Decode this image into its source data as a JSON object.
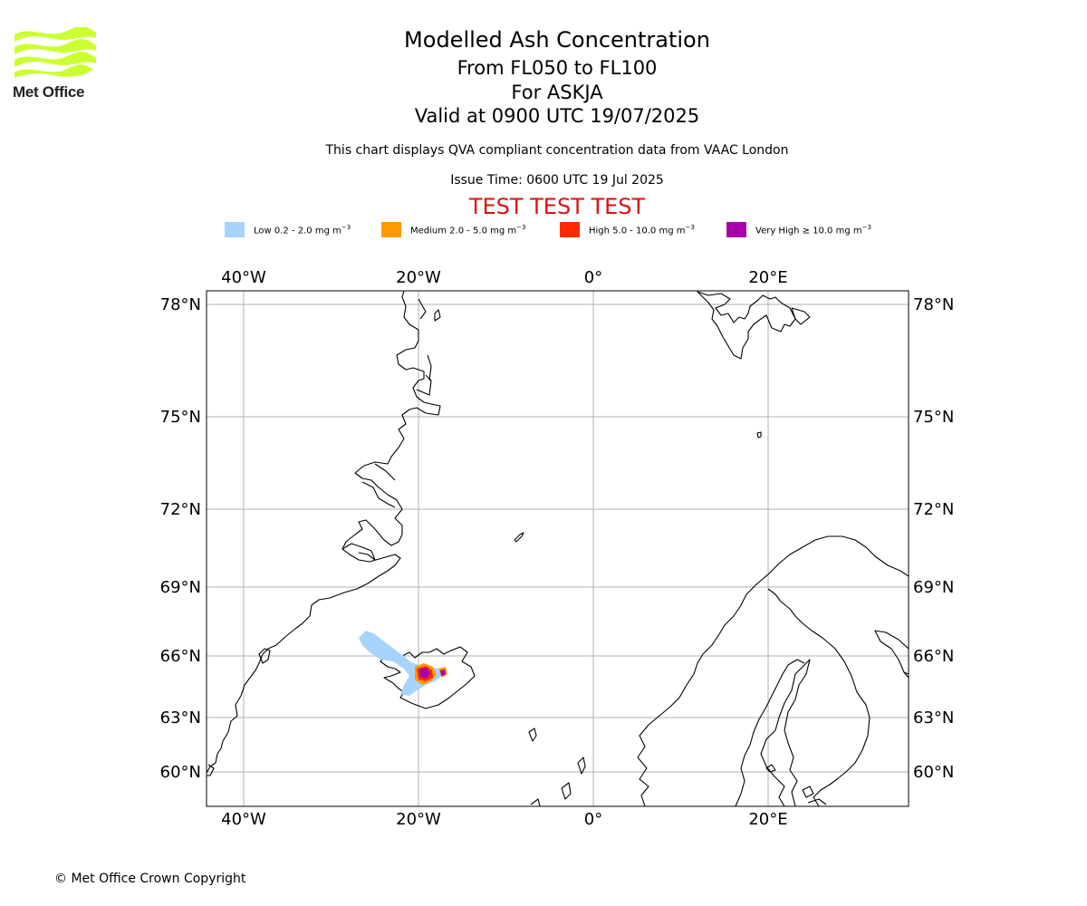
{
  "header": {
    "logo_text": "Met Office",
    "title": "Modelled Ash Concentration",
    "levels": "From FL050 to FL100",
    "volcano": "For ASKJA",
    "valid": "Valid at 0900 UTC 19/07/2025",
    "description": "This chart displays QVA compliant concentration data from VAAC London",
    "issue_time": "Issue Time: 0600 UTC 19 Jul 2025",
    "banner": "TEST TEST TEST"
  },
  "legend": {
    "unit": "mg m",
    "unit_exp": "−3",
    "items": [
      {
        "label": "Low 0.2 - 2.0",
        "color": "#a6d4ff"
      },
      {
        "label": "Medium 2.0 - 5.0",
        "color": "#ff9900"
      },
      {
        "label": "High 5.0 - 10.0",
        "color": "#ff2a00"
      },
      {
        "label": "Very High  ≥  10.0",
        "color": "#aa00aa"
      }
    ]
  },
  "map": {
    "lon_ticks": [
      "40°W",
      "20°W",
      "0°",
      "20°E"
    ],
    "lat_ticks": [
      "78°N",
      "75°N",
      "72°N",
      "69°N",
      "66°N",
      "63°N",
      "60°N"
    ],
    "colors": {
      "grid": "#b0b0b0",
      "coast": "#000000",
      "frame": "#000000",
      "brand_green": "#ccff33"
    }
  },
  "footer": {
    "copyright": "© Met Office Crown Copyright"
  }
}
